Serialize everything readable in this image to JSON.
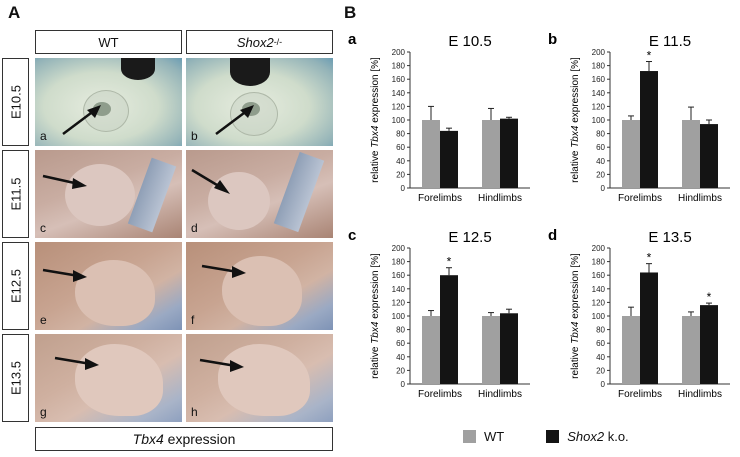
{
  "panelA": {
    "letter": "A",
    "col_wt": "WT",
    "col_ko_gene": "Shox2",
    "col_ko_sup": "-/-",
    "rows": [
      "E10.5",
      "E11.5",
      "E12.5",
      "E13.5"
    ],
    "sublabels": [
      "a",
      "b",
      "c",
      "d",
      "e",
      "f",
      "g",
      "h"
    ],
    "footer_gene": "Tbx4",
    "footer_text": " expression"
  },
  "panelB": {
    "letter": "B",
    "legend": {
      "wt": "WT",
      "ko_gene": "Shox2",
      "ko_text": " k.o."
    },
    "colors": {
      "wt": "#a0a0a0",
      "ko": "#141414"
    }
  },
  "chart_data": [
    {
      "type": "bar",
      "sublabel": "a",
      "title": "E 10.5",
      "ylabel_pre": "relative ",
      "ylabel_gene": "Tbx4",
      "ylabel_post": " expression [%]",
      "ylim": [
        0,
        200
      ],
      "yticks": [
        0,
        20,
        40,
        60,
        80,
        100,
        120,
        140,
        160,
        180,
        200
      ],
      "categories": [
        "Forelimbs",
        "Hindlimbs"
      ],
      "series": [
        {
          "name": "WT",
          "values": [
            100,
            100
          ],
          "errors": [
            20,
            17
          ]
        },
        {
          "name": "Shox2 k.o.",
          "values": [
            84,
            102
          ],
          "errors": [
            4,
            2
          ]
        }
      ],
      "annotations": []
    },
    {
      "type": "bar",
      "sublabel": "b",
      "title": "E 11.5",
      "ylabel_pre": "relative ",
      "ylabel_gene": "Tbx4",
      "ylabel_post": " expression [%]",
      "ylim": [
        0,
        200
      ],
      "yticks": [
        0,
        20,
        40,
        60,
        80,
        100,
        120,
        140,
        160,
        180,
        200
      ],
      "categories": [
        "Forelimbs",
        "Hindlimbs"
      ],
      "series": [
        {
          "name": "WT",
          "values": [
            100,
            100
          ],
          "errors": [
            6,
            19
          ]
        },
        {
          "name": "Shox2 k.o.",
          "values": [
            172,
            94
          ],
          "errors": [
            14,
            6
          ]
        }
      ],
      "annotations": [
        {
          "category": 0,
          "series": 1,
          "text": "*"
        }
      ]
    },
    {
      "type": "bar",
      "sublabel": "c",
      "title": "E 12.5",
      "ylabel_pre": "relative ",
      "ylabel_gene": "Tbx4",
      "ylabel_post": " expression [%]",
      "ylim": [
        0,
        200
      ],
      "yticks": [
        0,
        20,
        40,
        60,
        80,
        100,
        120,
        140,
        160,
        180,
        200
      ],
      "categories": [
        "Forelimbs",
        "Hindlimbs"
      ],
      "series": [
        {
          "name": "WT",
          "values": [
            100,
            100
          ],
          "errors": [
            8,
            5
          ]
        },
        {
          "name": "Shox2 k.o.",
          "values": [
            160,
            104
          ],
          "errors": [
            11,
            6
          ]
        }
      ],
      "annotations": [
        {
          "category": 0,
          "series": 1,
          "text": "*"
        }
      ]
    },
    {
      "type": "bar",
      "sublabel": "d",
      "title": "E 13.5",
      "ylabel_pre": "relative ",
      "ylabel_gene": "Tbx4",
      "ylabel_post": " expression [%]",
      "ylim": [
        0,
        200
      ],
      "yticks": [
        0,
        20,
        40,
        60,
        80,
        100,
        120,
        140,
        160,
        180,
        200
      ],
      "categories": [
        "Forelimbs",
        "Hindlimbs"
      ],
      "series": [
        {
          "name": "WT",
          "values": [
            100,
            100
          ],
          "errors": [
            13,
            6
          ]
        },
        {
          "name": "Shox2 k.o.",
          "values": [
            164,
            116
          ],
          "errors": [
            13,
            3
          ]
        }
      ],
      "annotations": [
        {
          "category": 0,
          "series": 1,
          "text": "*"
        },
        {
          "category": 1,
          "series": 1,
          "text": "*"
        }
      ]
    }
  ]
}
